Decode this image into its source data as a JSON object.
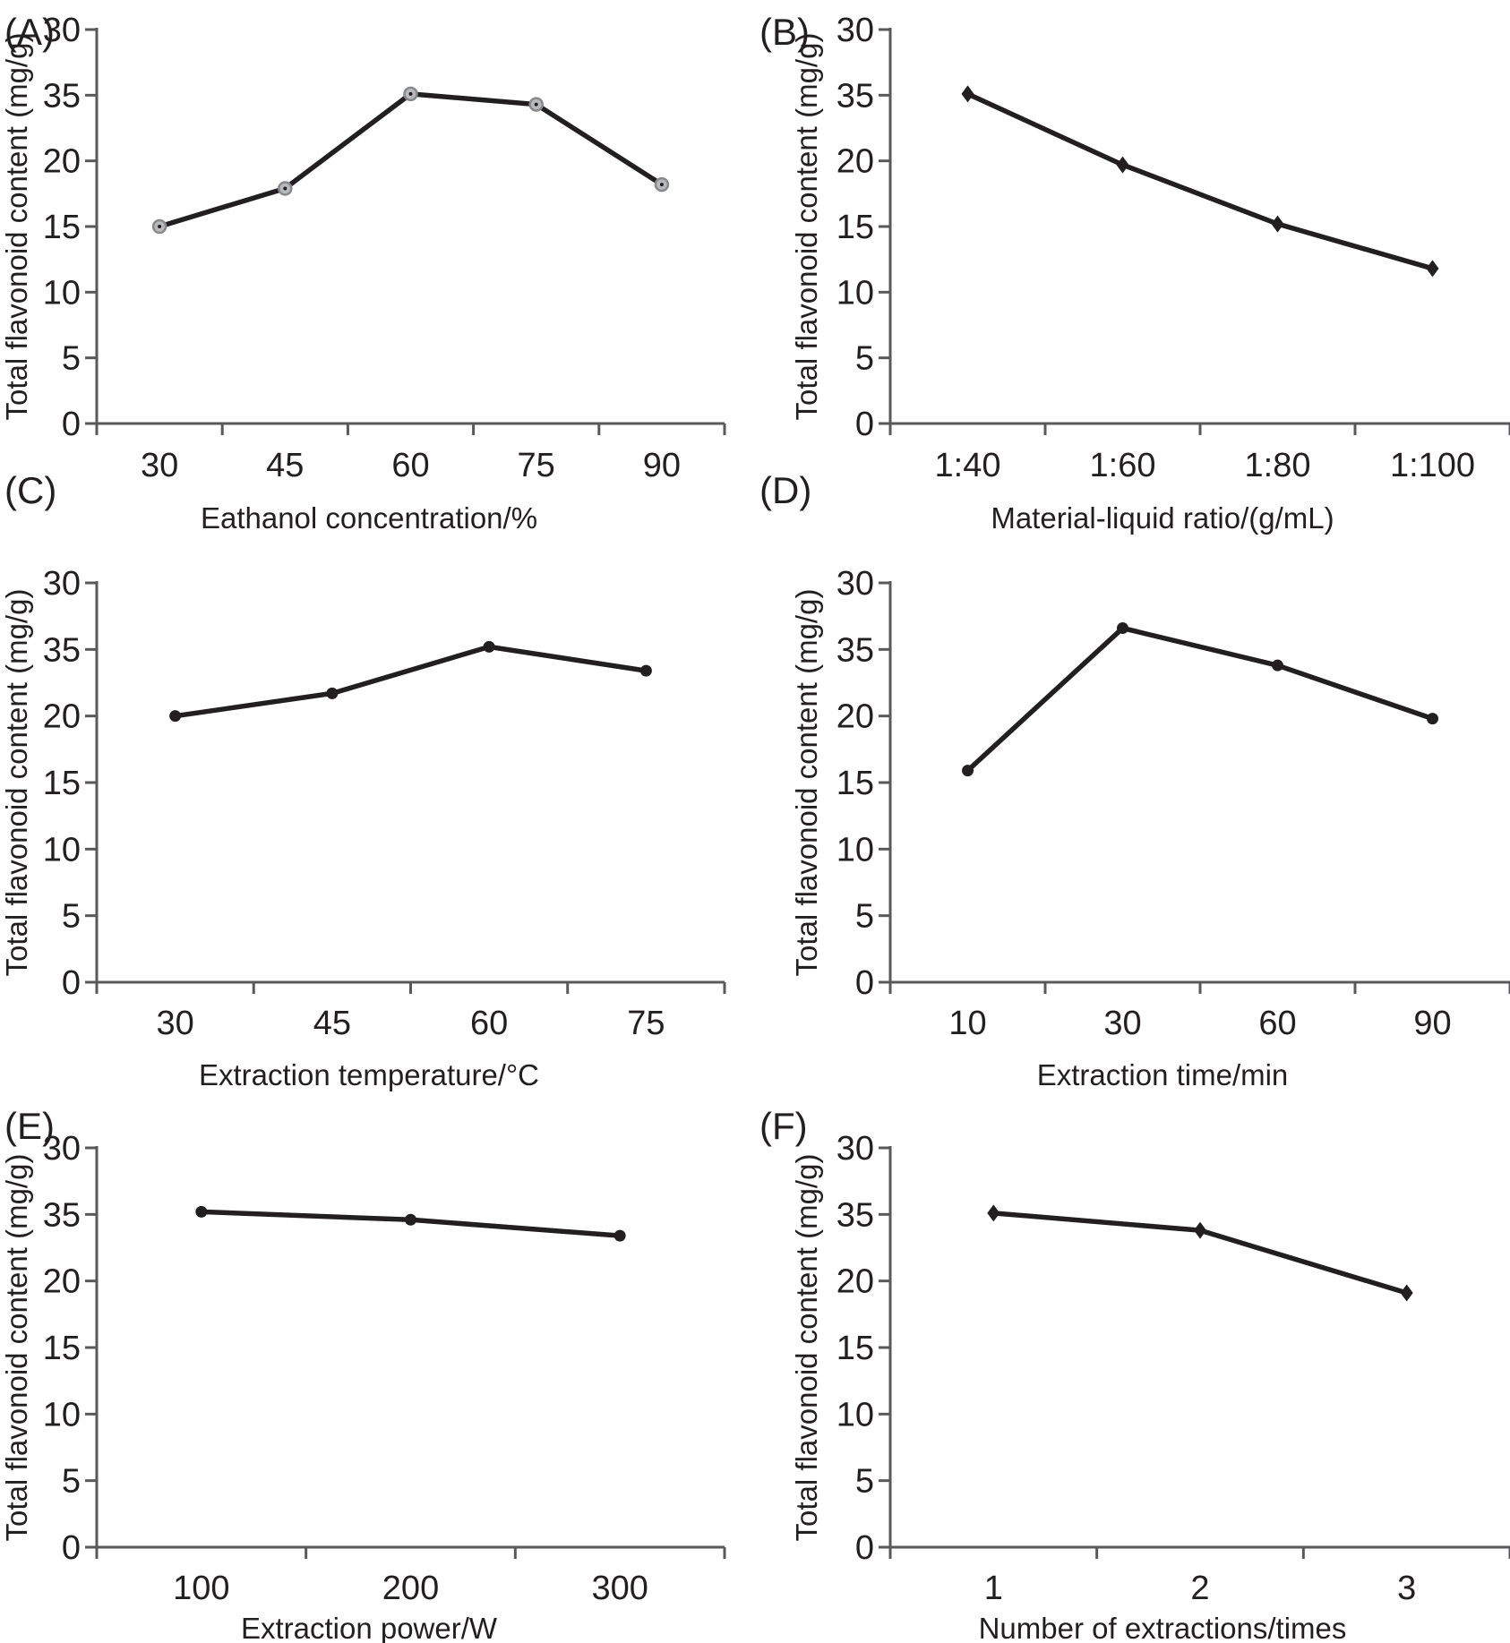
{
  "figure": {
    "background": "#ffffff",
    "shared_ylabel": "Total flavonoid content (mg/g)",
    "y_tick_labels_bottom_to_top": [
      "0",
      "5",
      "10",
      "15",
      "20",
      "35",
      "30"
    ],
    "y_axis_note": "tick labels printed exactly as in source figure; the label 35 occupies the 25 position on the evenly spaced scale",
    "colors": {
      "line": "#231f20",
      "axis": "#59595b",
      "text": "#231f20",
      "ring_marker_fill": "#b7b9bc",
      "ring_marker_stroke": "#87898c"
    }
  },
  "chart_data": [
    {
      "panel": "(A)",
      "type": "line",
      "xlabel": "Eathanol concentration/%",
      "ylabel": "Total flavonoid content (mg/g)",
      "categories": [
        "30",
        "45",
        "60",
        "75",
        "90"
      ],
      "values": [
        15.0,
        17.9,
        25.1,
        24.3,
        18.2
      ],
      "values_scale_note": "axis-position units: one printed label step = 5 units; printed labels bottom-to-top 0,5,10,15,20,35,30",
      "ylim": [
        0,
        30
      ],
      "marker": "ring-circle",
      "grid": false,
      "legend": "none"
    },
    {
      "panel": "(B)",
      "type": "line",
      "xlabel": "Material-liquid ratio/(g/mL)",
      "ylabel": "Total flavonoid content (mg/g)",
      "categories": [
        "1:40",
        "1:60",
        "1:80",
        "1:100"
      ],
      "values": [
        25.1,
        19.7,
        15.2,
        11.8
      ],
      "ylim": [
        0,
        30
      ],
      "marker": "diamond",
      "grid": false,
      "legend": "none"
    },
    {
      "panel": "(C)",
      "type": "line",
      "xlabel": "Extraction temperature/°C",
      "ylabel": "Total flavonoid content (mg/g)",
      "categories": [
        "30",
        "45",
        "60",
        "75"
      ],
      "values": [
        20.0,
        21.7,
        25.2,
        23.4
      ],
      "ylim": [
        0,
        30
      ],
      "marker": "dot",
      "grid": false,
      "legend": "none"
    },
    {
      "panel": "(D)",
      "type": "line",
      "xlabel": "Extraction time/min",
      "ylabel": "Total flavonoid content (mg/g)",
      "categories": [
        "10",
        "30",
        "60",
        "90"
      ],
      "values": [
        15.9,
        26.6,
        23.8,
        19.8
      ],
      "ylim": [
        0,
        30
      ],
      "marker": "dot",
      "grid": false,
      "legend": "none"
    },
    {
      "panel": "(E)",
      "type": "line",
      "xlabel": "Extraction power/W",
      "ylabel": "Total flavonoid content (mg/g)",
      "categories": [
        "100",
        "200",
        "300"
      ],
      "values": [
        25.2,
        24.6,
        23.4
      ],
      "ylim": [
        0,
        30
      ],
      "marker": "dot",
      "grid": false,
      "legend": "none"
    },
    {
      "panel": "(F)",
      "type": "line",
      "xlabel": "Number of extractions/times",
      "ylabel": "Total flavonoid content (mg/g)",
      "categories": [
        "1",
        "2",
        "3"
      ],
      "values": [
        25.1,
        23.8,
        19.1
      ],
      "ylim": [
        0,
        30
      ],
      "marker": "diamond",
      "grid": false,
      "legend": "none"
    }
  ]
}
